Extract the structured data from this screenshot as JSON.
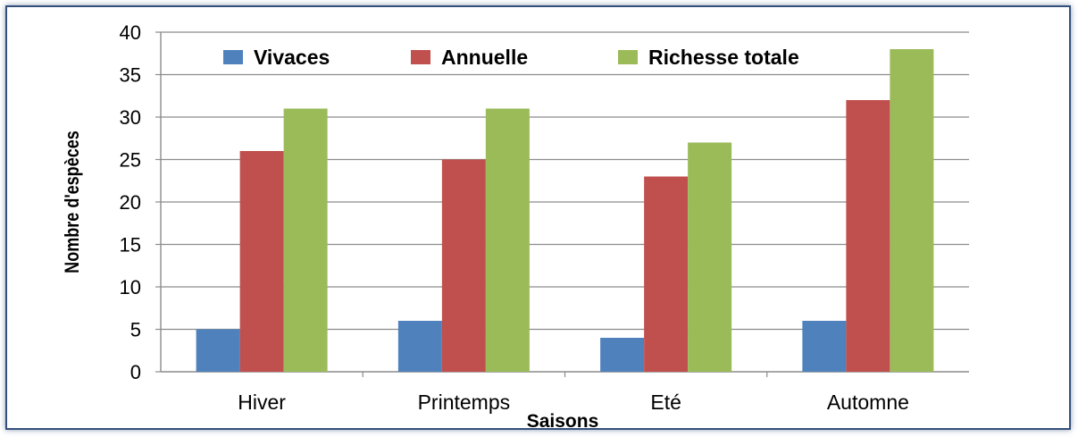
{
  "chart_data": {
    "type": "bar",
    "categories": [
      "Hiver",
      "Printemps",
      "Eté",
      "Automne"
    ],
    "series": [
      {
        "name": "Vivaces",
        "color": "#4f81bd",
        "values": [
          5,
          6,
          4,
          6
        ]
      },
      {
        "name": "Annuelle",
        "color": "#c0504d",
        "values": [
          26,
          25,
          23,
          32
        ]
      },
      {
        "name": "Richesse totale",
        "color": "#9bbb59",
        "values": [
          31,
          31,
          27,
          38
        ]
      }
    ],
    "xlabel": "Saisons",
    "ylabel": "Nombre d'espèces",
    "ylim": [
      0,
      40
    ],
    "yticks": [
      0,
      5,
      10,
      15,
      20,
      25,
      30,
      35,
      40
    ],
    "grid": true,
    "legend": "top"
  }
}
